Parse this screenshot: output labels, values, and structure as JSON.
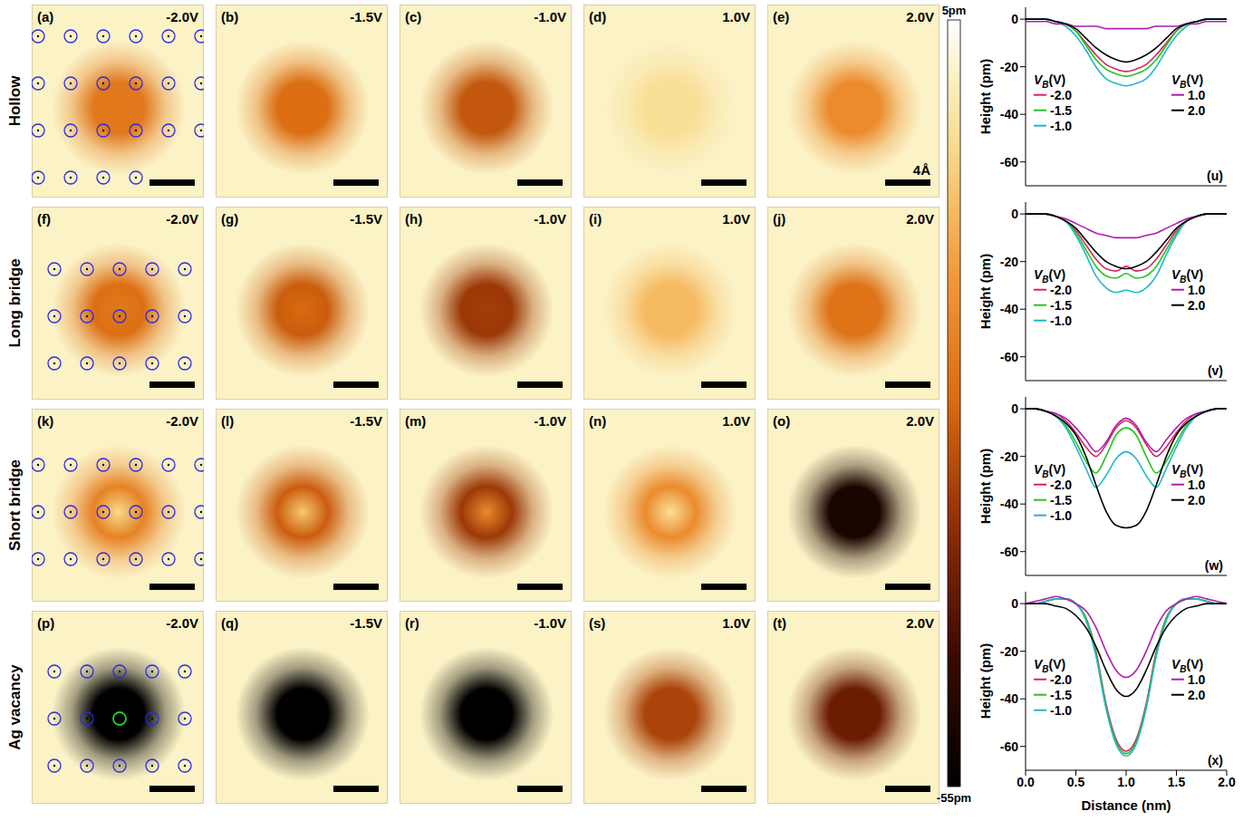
{
  "stm_images": {
    "rows": [
      {
        "label": "Hollow",
        "panels": [
          {
            "label": "(a)",
            "bias": "-2.0V",
            "center": -22,
            "min": -22
          },
          {
            "label": "(b)",
            "bias": "-1.5V",
            "center": -24,
            "min": -24
          },
          {
            "label": "(c)",
            "bias": "-1.0V",
            "center": -28,
            "min": -28
          },
          {
            "label": "(d)",
            "bias": "1.0V",
            "center": -4,
            "min": -4
          },
          {
            "label": "(e)",
            "bias": "2.0V",
            "center": -18,
            "min": -18,
            "scale_bar_label": "4Å"
          }
        ]
      },
      {
        "label": "Long bridge",
        "panels": [
          {
            "label": "(f)",
            "bias": "-2.0V",
            "center": -22,
            "min": -24
          },
          {
            "label": "(g)",
            "bias": "-1.5V",
            "center": -25,
            "min": -27
          },
          {
            "label": "(h)",
            "bias": "-1.0V",
            "center": -32,
            "min": -33
          },
          {
            "label": "(i)",
            "bias": "1.0V",
            "center": -10,
            "min": -10
          },
          {
            "label": "(j)",
            "bias": "2.0V",
            "center": -23,
            "min": -23
          }
        ]
      },
      {
        "label": "Short bridge",
        "panels": [
          {
            "label": "(k)",
            "bias": "-2.0V",
            "center": -5,
            "min": -20
          },
          {
            "label": "(l)",
            "bias": "-1.5V",
            "center": -8,
            "min": -27
          },
          {
            "label": "(m)",
            "bias": "-1.0V",
            "center": -18,
            "min": -33
          },
          {
            "label": "(n)",
            "bias": "1.0V",
            "center": -4,
            "min": -18
          },
          {
            "label": "(o)",
            "bias": "2.0V",
            "center": -50,
            "min": -50
          }
        ]
      },
      {
        "label": "Ag vacancy",
        "panels": [
          {
            "label": "(p)",
            "bias": "-2.0V",
            "center": -62,
            "min": -62
          },
          {
            "label": "(q)",
            "bias": "-1.5V",
            "center": -63,
            "min": -63
          },
          {
            "label": "(r)",
            "bias": "-1.0V",
            "center": -64,
            "min": -64
          },
          {
            "label": "(s)",
            "bias": "1.0V",
            "center": -31,
            "min": -31
          },
          {
            "label": "(t)",
            "bias": "2.0V",
            "center": -39,
            "min": -39
          }
        ]
      }
    ],
    "colorbar": {
      "range": [
        -55,
        5
      ],
      "ticks": [
        {
          "value": 5,
          "label": "5pm"
        },
        {
          "value": -55,
          "label": "-55pm"
        }
      ]
    }
  },
  "chart_data": [
    {
      "type": "line",
      "annotation": "(u)",
      "y_label": "Height (pm)",
      "legend_title": "VB(V)",
      "tick_labels": "y",
      "x": [
        0,
        0.1,
        0.2,
        0.3,
        0.4,
        0.5,
        0.6,
        0.7,
        0.8,
        0.9,
        1.0,
        1.1,
        1.2,
        1.3,
        1.4,
        1.5,
        1.6,
        1.7,
        1.8,
        1.9,
        2.0
      ],
      "xlim": [
        0,
        2
      ],
      "xticks": [
        {
          "value": 0,
          "label": "0.0"
        },
        {
          "value": 0.5,
          "label": "0.5"
        },
        {
          "value": 1,
          "label": "1.0"
        },
        {
          "value": 1.5,
          "label": "1.5"
        },
        {
          "value": 2,
          "label": "2.0"
        }
      ],
      "ylim": [
        -70,
        5
      ],
      "yticks": [
        0,
        -20,
        -40,
        -60
      ],
      "series": [
        {
          "name": "-2.0",
          "color": "#d62560",
          "values": [
            0,
            0,
            0,
            -1,
            -2,
            -5,
            -10,
            -15,
            -19,
            -21,
            -22,
            -21,
            -19,
            -15,
            -10,
            -5,
            -2,
            -1,
            0,
            0,
            0
          ]
        },
        {
          "name": "-1.5",
          "color": "#22c422",
          "values": [
            0,
            0,
            0,
            -1,
            -2,
            -5,
            -11,
            -17,
            -21,
            -23,
            -24,
            -23,
            -21,
            -17,
            -11,
            -5,
            -2,
            -1,
            0,
            0,
            0
          ]
        },
        {
          "name": "-1.0",
          "color": "#20b8c8",
          "values": [
            0,
            0,
            0,
            -1,
            -3,
            -7,
            -13,
            -20,
            -25,
            -27,
            -28,
            -27,
            -25,
            -20,
            -13,
            -7,
            -3,
            -1,
            0,
            0,
            0
          ]
        },
        {
          "name": "1.0",
          "color": "#b01cb0",
          "values": [
            -1,
            -1,
            -1,
            -2,
            -2,
            -3,
            -3,
            -3,
            -4,
            -4,
            -4,
            -4,
            -4,
            -3,
            -3,
            -3,
            -2,
            -2,
            -1,
            -1,
            -1
          ]
        },
        {
          "name": "2.0",
          "color": "#000000",
          "values": [
            0,
            0,
            0,
            -1,
            -2,
            -4,
            -8,
            -12,
            -15,
            -17,
            -18,
            -17,
            -15,
            -12,
            -8,
            -4,
            -2,
            -1,
            0,
            0,
            0
          ]
        }
      ]
    },
    {
      "type": "line",
      "annotation": "(v)",
      "y_label": "Height (pm)",
      "legend_title": "VB(V)",
      "tick_labels": "y",
      "x": [
        0,
        0.1,
        0.2,
        0.3,
        0.4,
        0.5,
        0.6,
        0.7,
        0.8,
        0.9,
        1.0,
        1.1,
        1.2,
        1.3,
        1.4,
        1.5,
        1.6,
        1.7,
        1.8,
        1.9,
        2.0
      ],
      "xlim": [
        0,
        2
      ],
      "xticks": [
        {
          "value": 0,
          "label": "0.0"
        },
        {
          "value": 0.5,
          "label": "0.5"
        },
        {
          "value": 1,
          "label": "1.0"
        },
        {
          "value": 1.5,
          "label": "1.5"
        },
        {
          "value": 2,
          "label": "2.0"
        }
      ],
      "ylim": [
        -70,
        5
      ],
      "yticks": [
        0,
        -20,
        -40,
        -60
      ],
      "series": [
        {
          "name": "-2.0",
          "color": "#d62560",
          "values": [
            0,
            0,
            0,
            -1,
            -3,
            -7,
            -13,
            -19,
            -23,
            -24,
            -22,
            -24,
            -23,
            -19,
            -13,
            -7,
            -3,
            -1,
            0,
            0,
            0
          ]
        },
        {
          "name": "-1.5",
          "color": "#22c422",
          "values": [
            0,
            0,
            0,
            -1,
            -3,
            -8,
            -15,
            -22,
            -26,
            -27,
            -25,
            -27,
            -26,
            -22,
            -15,
            -8,
            -3,
            -1,
            0,
            0,
            0
          ]
        },
        {
          "name": "-1.0",
          "color": "#20b8c8",
          "values": [
            0,
            0,
            0,
            -1,
            -3,
            -9,
            -17,
            -26,
            -31,
            -33,
            -32,
            -33,
            -31,
            -26,
            -17,
            -9,
            -3,
            -1,
            0,
            0,
            0
          ]
        },
        {
          "name": "1.0",
          "color": "#b01cb0",
          "values": [
            0,
            0,
            0,
            -1,
            -2,
            -4,
            -6,
            -8,
            -9,
            -10,
            -10,
            -10,
            -9,
            -8,
            -6,
            -4,
            -2,
            -1,
            0,
            0,
            0
          ]
        },
        {
          "name": "2.0",
          "color": "#000000",
          "values": [
            0,
            0,
            0,
            -1,
            -3,
            -6,
            -11,
            -16,
            -20,
            -22,
            -23,
            -22,
            -20,
            -16,
            -11,
            -6,
            -3,
            -1,
            0,
            0,
            0
          ]
        }
      ]
    },
    {
      "type": "line",
      "annotation": "(w)",
      "y_label": "Height (pm)",
      "legend_title": "VB(V)",
      "tick_labels": "y",
      "x": [
        0,
        0.1,
        0.2,
        0.3,
        0.4,
        0.5,
        0.6,
        0.7,
        0.8,
        0.9,
        1.0,
        1.1,
        1.2,
        1.3,
        1.4,
        1.5,
        1.6,
        1.7,
        1.8,
        1.9,
        2.0
      ],
      "xlim": [
        0,
        2
      ],
      "xticks": [
        {
          "value": 0,
          "label": "0.0"
        },
        {
          "value": 0.5,
          "label": "0.5"
        },
        {
          "value": 1,
          "label": "1.0"
        },
        {
          "value": 1.5,
          "label": "1.5"
        },
        {
          "value": 2,
          "label": "2.0"
        }
      ],
      "ylim": [
        -70,
        5
      ],
      "yticks": [
        0,
        -20,
        -40,
        -60
      ],
      "series": [
        {
          "name": "-2.0",
          "color": "#d62560",
          "values": [
            0,
            0,
            -1,
            -2,
            -5,
            -10,
            -16,
            -20,
            -15,
            -8,
            -5,
            -8,
            -15,
            -20,
            -16,
            -10,
            -5,
            -2,
            -1,
            0,
            0
          ]
        },
        {
          "name": "-1.5",
          "color": "#22c422",
          "values": [
            0,
            0,
            -1,
            -3,
            -7,
            -14,
            -22,
            -27,
            -20,
            -11,
            -8,
            -11,
            -20,
            -27,
            -22,
            -14,
            -7,
            -3,
            -1,
            0,
            0
          ]
        },
        {
          "name": "-1.0",
          "color": "#20b8c8",
          "values": [
            0,
            0,
            -1,
            -3,
            -8,
            -16,
            -25,
            -33,
            -28,
            -21,
            -18,
            -21,
            -28,
            -33,
            -25,
            -16,
            -8,
            -3,
            -1,
            0,
            0
          ]
        },
        {
          "name": "1.0",
          "color": "#b01cb0",
          "values": [
            0,
            0,
            -1,
            -2,
            -4,
            -8,
            -13,
            -18,
            -14,
            -7,
            -4,
            -7,
            -14,
            -18,
            -13,
            -8,
            -4,
            -2,
            -1,
            0,
            0
          ]
        },
        {
          "name": "2.0",
          "color": "#000000",
          "values": [
            0,
            0,
            -1,
            -3,
            -6,
            -11,
            -20,
            -32,
            -43,
            -49,
            -50,
            -49,
            -43,
            -32,
            -20,
            -11,
            -6,
            -3,
            -1,
            0,
            0
          ]
        }
      ]
    },
    {
      "type": "line",
      "annotation": "(x)",
      "y_label": "Height (pm)",
      "x_label": "Distance (nm)",
      "legend_title": "VB(V)",
      "x": [
        0,
        0.1,
        0.2,
        0.3,
        0.4,
        0.5,
        0.6,
        0.7,
        0.8,
        0.9,
        1.0,
        1.1,
        1.2,
        1.3,
        1.4,
        1.5,
        1.6,
        1.7,
        1.8,
        1.9,
        2.0
      ],
      "xlim": [
        0,
        2
      ],
      "xticks": [
        {
          "value": 0,
          "label": "0.0"
        },
        {
          "value": 0.5,
          "label": "0.5"
        },
        {
          "value": 1,
          "label": "1.0"
        },
        {
          "value": 1.5,
          "label": "1.5"
        },
        {
          "value": 2,
          "label": "2.0"
        }
      ],
      "ylim": [
        -70,
        5
      ],
      "yticks": [
        0,
        -20,
        -40,
        -60
      ],
      "series": [
        {
          "name": "-2.0",
          "color": "#d62560",
          "values": [
            0,
            0,
            1,
            2,
            2,
            0,
            -6,
            -20,
            -42,
            -57,
            -62,
            -57,
            -42,
            -20,
            -6,
            0,
            2,
            2,
            1,
            0,
            0
          ]
        },
        {
          "name": "-1.5",
          "color": "#22c422",
          "values": [
            0,
            0,
            1,
            2,
            2,
            0,
            -6,
            -21,
            -43,
            -58,
            -63,
            -58,
            -43,
            -21,
            -6,
            0,
            2,
            2,
            1,
            0,
            0
          ]
        },
        {
          "name": "-1.0",
          "color": "#20b8c8",
          "values": [
            0,
            0,
            1,
            2,
            2,
            0,
            -7,
            -22,
            -44,
            -59,
            -64,
            -59,
            -44,
            -22,
            -7,
            0,
            2,
            2,
            1,
            0,
            0
          ]
        },
        {
          "name": "1.0",
          "color": "#b01cb0",
          "values": [
            0,
            1,
            2,
            3,
            2,
            0,
            -3,
            -10,
            -20,
            -28,
            -31,
            -28,
            -20,
            -10,
            -3,
            0,
            2,
            3,
            2,
            1,
            0
          ]
        },
        {
          "name": "2.0",
          "color": "#000000",
          "values": [
            0,
            0,
            0,
            -1,
            -2,
            -5,
            -10,
            -18,
            -28,
            -36,
            -39,
            -36,
            -28,
            -18,
            -10,
            -5,
            -2,
            -1,
            0,
            0,
            0
          ]
        }
      ]
    }
  ]
}
